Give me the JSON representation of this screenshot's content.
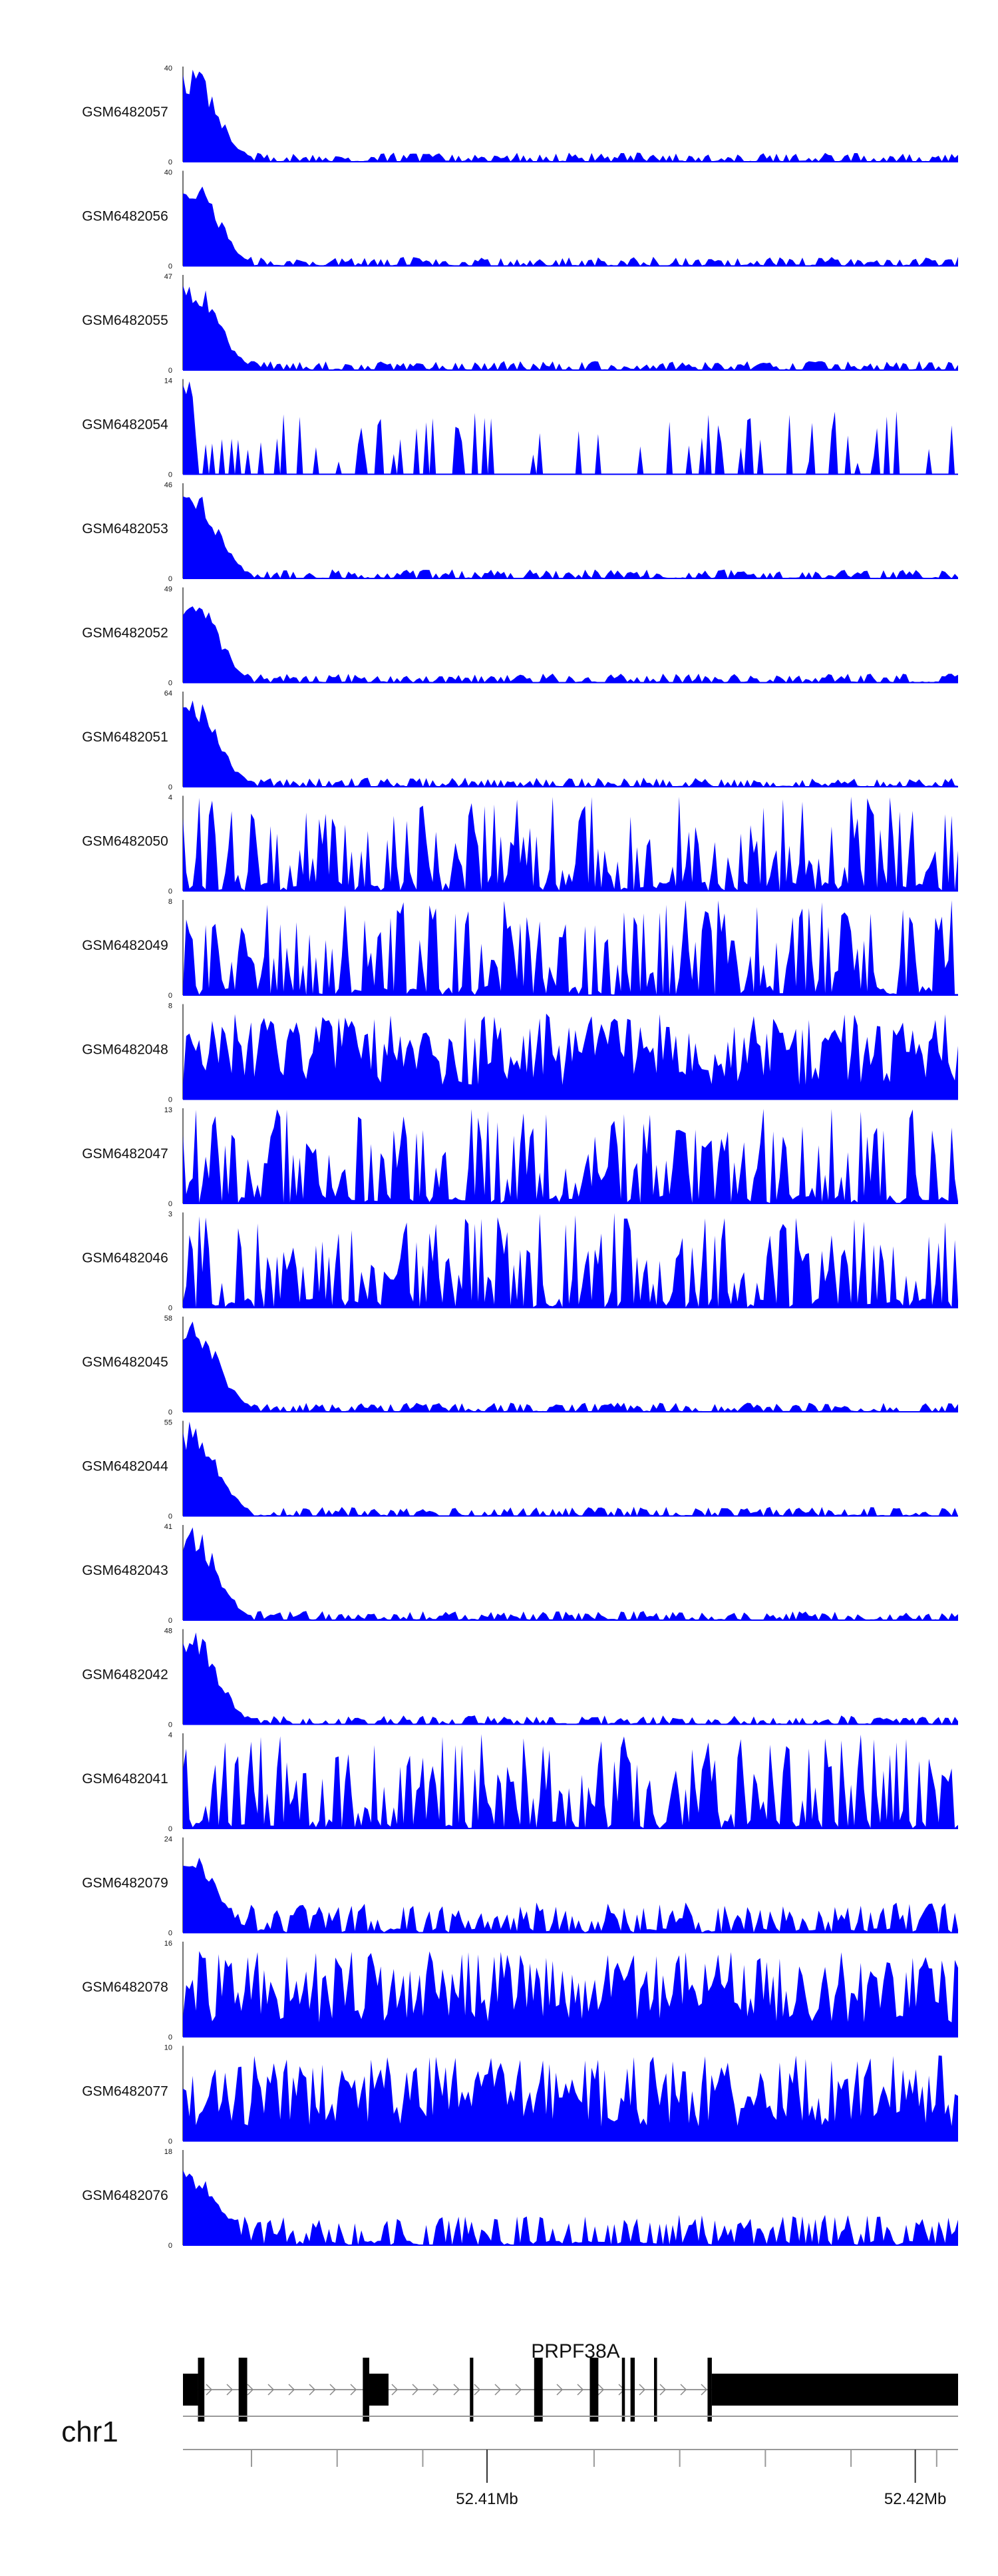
{
  "chart_data": {
    "type": "area",
    "track_color": "#0000FF",
    "tracks": [
      {
        "name": "GSM6482057",
        "ymax": "40",
        "ymin": "0",
        "seed": 11,
        "profile": "peak",
        "h": 40
      },
      {
        "name": "GSM6482056",
        "ymax": "40",
        "ymin": "0",
        "seed": 12,
        "profile": "peak",
        "h": 40
      },
      {
        "name": "GSM6482055",
        "ymax": "47",
        "ymin": "0",
        "seed": 13,
        "profile": "peak",
        "h": 47
      },
      {
        "name": "GSM6482054",
        "ymax": "14",
        "ymin": "0",
        "seed": 14,
        "profile": "sparse",
        "h": 14
      },
      {
        "name": "GSM6482053",
        "ymax": "46",
        "ymin": "0",
        "seed": 15,
        "profile": "peak",
        "h": 46
      },
      {
        "name": "GSM6482052",
        "ymax": "49",
        "ymin": "0",
        "seed": 16,
        "profile": "peak",
        "h": 49
      },
      {
        "name": "GSM6482051",
        "ymax": "64",
        "ymin": "0",
        "seed": 17,
        "profile": "peak",
        "h": 64
      },
      {
        "name": "GSM6482050",
        "ymax": "4",
        "ymin": "0",
        "seed": 18,
        "profile": "noise",
        "h": 4
      },
      {
        "name": "GSM6482049",
        "ymax": "8",
        "ymin": "0",
        "seed": 19,
        "profile": "noise",
        "h": 8
      },
      {
        "name": "GSM6482048",
        "ymax": "8",
        "ymin": "0",
        "seed": 20,
        "profile": "dense",
        "h": 8
      },
      {
        "name": "GSM6482047",
        "ymax": "13",
        "ymin": "0",
        "seed": 21,
        "profile": "noise",
        "h": 13
      },
      {
        "name": "GSM6482046",
        "ymax": "3",
        "ymin": "0",
        "seed": 22,
        "profile": "noise",
        "h": 3
      },
      {
        "name": "GSM6482045",
        "ymax": "58",
        "ymin": "0",
        "seed": 23,
        "profile": "peak",
        "h": 58
      },
      {
        "name": "GSM6482044",
        "ymax": "55",
        "ymin": "0",
        "seed": 24,
        "profile": "peak",
        "h": 55
      },
      {
        "name": "GSM6482043",
        "ymax": "41",
        "ymin": "0",
        "seed": 25,
        "profile": "peak",
        "h": 41
      },
      {
        "name": "GSM6482042",
        "ymax": "48",
        "ymin": "0",
        "seed": 26,
        "profile": "peak",
        "h": 48
      },
      {
        "name": "GSM6482041",
        "ymax": "4",
        "ymin": "0",
        "seed": 27,
        "profile": "noise",
        "h": 4
      },
      {
        "name": "GSM6482079",
        "ymax": "24",
        "ymin": "0",
        "seed": 28,
        "profile": "peakmid",
        "h": 24
      },
      {
        "name": "GSM6482078",
        "ymax": "16",
        "ymin": "0",
        "seed": 29,
        "profile": "dense",
        "h": 16
      },
      {
        "name": "GSM6482077",
        "ymax": "10",
        "ymin": "0",
        "seed": 30,
        "profile": "dense",
        "h": 10
      },
      {
        "name": "GSM6482076",
        "ymax": "18",
        "ymin": "0",
        "seed": 31,
        "profile": "peakmid",
        "h": 18
      }
    ],
    "gene": {
      "name": "PRPF38A"
    },
    "chromosome": "chr1",
    "region": {
      "start_mb": 52.4029,
      "end_mb": 52.421
    },
    "axis_ticks": [
      {
        "mb": 52.41,
        "label": "52.41Mb"
      },
      {
        "mb": 52.42,
        "label": "52.42Mb"
      }
    ],
    "minor_ticks_mb": [
      52.4045,
      52.4065,
      52.4085,
      52.4125,
      52.4145,
      52.4165,
      52.4185,
      52.4205
    ],
    "exons_mb": [
      {
        "start": 52.4029,
        "end": 52.40325,
        "tall": false
      },
      {
        "start": 52.40325,
        "end": 52.4034,
        "tall": true
      },
      {
        "start": 52.4042,
        "end": 52.4044,
        "tall": true
      },
      {
        "start": 52.4071,
        "end": 52.40725,
        "tall": true
      },
      {
        "start": 52.40725,
        "end": 52.4077,
        "tall": false
      },
      {
        "start": 52.4096,
        "end": 52.40968,
        "tall": true
      },
      {
        "start": 52.4111,
        "end": 52.4113,
        "tall": true
      },
      {
        "start": 52.4124,
        "end": 52.4126,
        "tall": true
      },
      {
        "start": 52.41315,
        "end": 52.41322,
        "tall": true
      },
      {
        "start": 52.41335,
        "end": 52.41345,
        "tall": true
      },
      {
        "start": 52.4139,
        "end": 52.41397,
        "tall": true
      },
      {
        "start": 52.41515,
        "end": 52.41525,
        "tall": true
      },
      {
        "start": 52.41525,
        "end": 52.421,
        "tall": false
      }
    ]
  }
}
